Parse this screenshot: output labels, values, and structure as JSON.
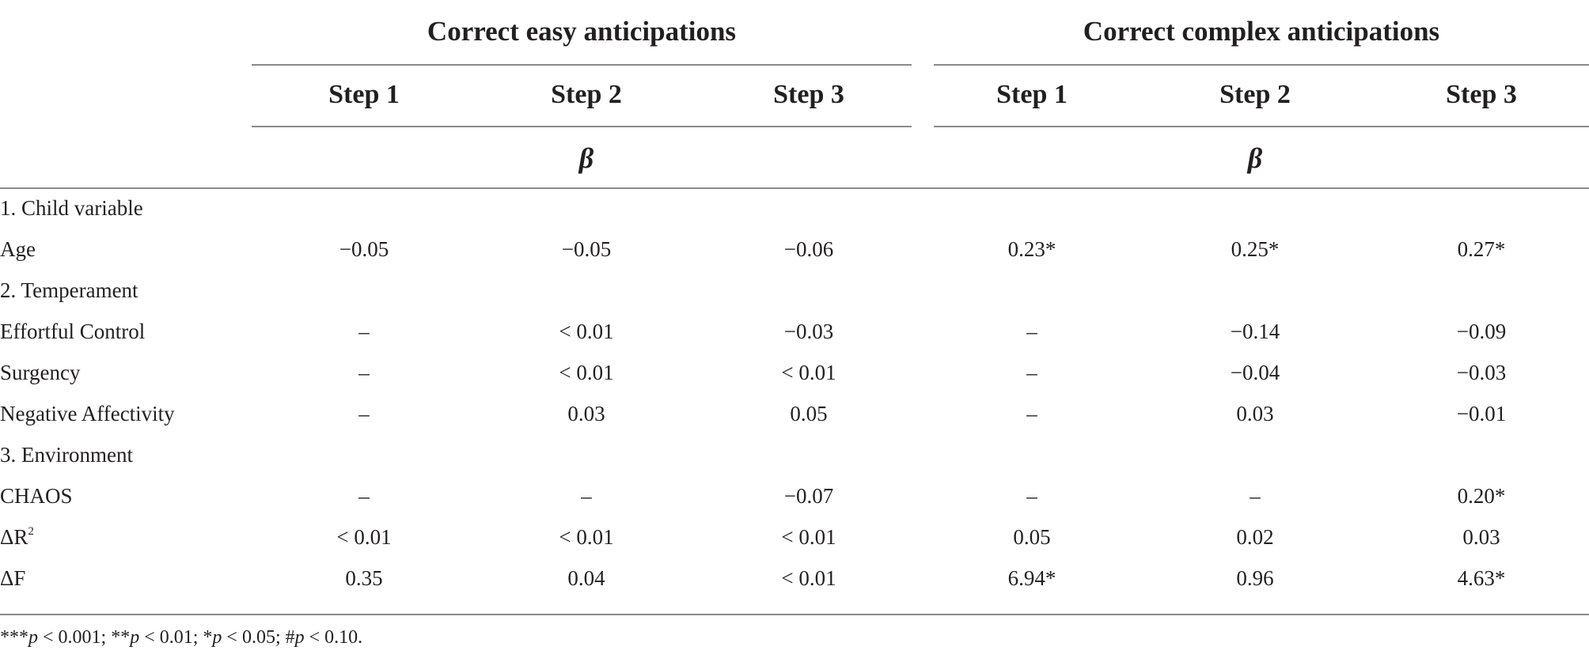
{
  "header": {
    "groups": [
      {
        "title": "Correct easy anticipations",
        "steps": [
          "Step 1",
          "Step 2",
          "Step 3"
        ],
        "coef": "β"
      },
      {
        "title": "Correct complex anticipations",
        "steps": [
          "Step 1",
          "Step 2",
          "Step 3"
        ],
        "coef": "β"
      }
    ]
  },
  "rows": [
    {
      "label": "1. Child variable",
      "values": [
        "",
        "",
        "",
        "",
        "",
        ""
      ]
    },
    {
      "label": "Age",
      "values": [
        "−0.05",
        "−0.05",
        "−0.06",
        "0.23*",
        "0.25*",
        "0.27*"
      ]
    },
    {
      "label": "2. Temperament",
      "values": [
        "",
        "",
        "",
        "",
        "",
        ""
      ]
    },
    {
      "label": "Effortful Control",
      "values": [
        "–",
        "< 0.01",
        "−0.03",
        "–",
        "−0.14",
        "−0.09"
      ]
    },
    {
      "label": "Surgency",
      "values": [
        "–",
        "< 0.01",
        "< 0.01",
        "–",
        "−0.04",
        "−0.03"
      ]
    },
    {
      "label": "Negative Affectivity",
      "values": [
        "–",
        "0.03",
        "0.05",
        "–",
        "0.03",
        "−0.01"
      ]
    },
    {
      "label": "3. Environment",
      "values": [
        "",
        "",
        "",
        "",
        "",
        ""
      ]
    },
    {
      "label": "CHAOS",
      "values": [
        "–",
        "–",
        "−0.07",
        "–",
        "–",
        "0.20*"
      ]
    },
    {
      "label": "ΔR",
      "label_sup": "2",
      "values": [
        "< 0.01",
        "< 0.01",
        "< 0.01",
        "0.05",
        "0.02",
        "0.03"
      ]
    },
    {
      "label": "ΔF",
      "values": [
        "0.35",
        "0.04",
        "< 0.01",
        "6.94*",
        "0.96",
        "4.63*"
      ]
    }
  ],
  "footnote": {
    "part1_stars": "***",
    "part1_p": "p",
    "part1_rest": " < 0.001; **",
    "part2_p": "p",
    "part2_rest": " < 0.01; *",
    "part3_p": "p",
    "part3_rest": " < 0.05; #",
    "part4_p": "p",
    "part4_rest": " < 0.10."
  }
}
